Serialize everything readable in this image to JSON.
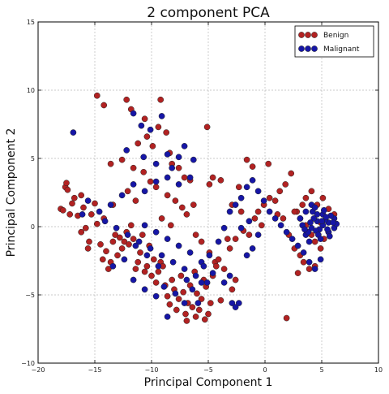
{
  "chart_data": {
    "type": "scatter",
    "title": "2 component PCA",
    "xlabel": "Principal Component 1",
    "ylabel": "Principal Component 2",
    "xlim": [
      -20,
      10
    ],
    "ylim": [
      -10,
      15
    ],
    "xticks": [
      -20,
      -15,
      -10,
      -5,
      0,
      5,
      10
    ],
    "yticks": [
      -10,
      -5,
      0,
      5,
      10,
      15
    ],
    "grid": true,
    "legend_position": "top-right",
    "series": [
      {
        "name": "Benign",
        "color": "#b22222",
        "points": [
          [
            -18,
            1.3
          ],
          [
            -17.8,
            1.2
          ],
          [
            -17.6,
            2.9
          ],
          [
            -17.5,
            3.2
          ],
          [
            -17.4,
            2.7
          ],
          [
            -17.2,
            0.9
          ],
          [
            -17,
            1.7
          ],
          [
            -16.8,
            2.1
          ],
          [
            -16.5,
            0.8
          ],
          [
            -16.2,
            2.3
          ],
          [
            -16,
            1.4
          ],
          [
            -15.8,
            -0.1
          ],
          [
            -15.5,
            -1.1
          ],
          [
            -15.3,
            0.9
          ],
          [
            -15,
            1.7
          ],
          [
            -14.8,
            0.2
          ],
          [
            -14.5,
            -1.3
          ],
          [
            -14.3,
            -2.4
          ],
          [
            -14,
            -1.8
          ],
          [
            -13.8,
            -3.1
          ],
          [
            -13.6,
            -2.6
          ],
          [
            -13.4,
            -1.1
          ],
          [
            -13.2,
            -0.6
          ],
          [
            -13,
            -2.1
          ],
          [
            -12.8,
            -0.8
          ],
          [
            -12.6,
            -1.6
          ],
          [
            -12.4,
            -1.1
          ],
          [
            -12.2,
            -0.4
          ],
          [
            -12,
            -1.3
          ],
          [
            -11.8,
            0.1
          ],
          [
            -11.6,
            -0.9
          ],
          [
            -11.4,
            -3.1
          ],
          [
            -11.2,
            -2.6
          ],
          [
            -11,
            -1.9
          ],
          [
            -10.8,
            -0.6
          ],
          [
            -10.6,
            -3.3
          ],
          [
            -10.4,
            -2.9
          ],
          [
            -10.2,
            -1.4
          ],
          [
            -10,
            -3.6
          ],
          [
            -9.8,
            -2.4
          ],
          [
            -9.6,
            -4.1
          ],
          [
            -9.4,
            -3.3
          ],
          [
            -9.2,
            -2.6
          ],
          [
            -9,
            -2.9
          ],
          [
            -8.8,
            -4.3
          ],
          [
            -8.6,
            -5.1
          ],
          [
            -8.4,
            -5.7
          ],
          [
            -8.2,
            -3.9
          ],
          [
            -8,
            -4.6
          ],
          [
            -7.8,
            -6.1
          ],
          [
            -7.6,
            -5.3
          ],
          [
            -7.4,
            -3.6
          ],
          [
            -7.2,
            -4.8
          ],
          [
            -7,
            -6.4
          ],
          [
            -6.8,
            -5.6
          ],
          [
            -6.6,
            -4.3
          ],
          [
            -6.4,
            -5.9
          ],
          [
            -6.2,
            -3.3
          ],
          [
            -6,
            -4.9
          ],
          [
            -5.8,
            -6.1
          ],
          [
            -5.6,
            -5.3
          ],
          [
            -5.4,
            -3.9
          ],
          [
            -5.2,
            -4.4
          ],
          [
            -5,
            -6.4
          ],
          [
            -4.8,
            -5.6
          ],
          [
            -4.6,
            -3.6
          ],
          [
            -4.4,
            -2.6
          ],
          [
            -14.8,
            9.6
          ],
          [
            -14.2,
            8.9
          ],
          [
            -12.2,
            9.3
          ],
          [
            -11.8,
            8.6
          ],
          [
            -10.6,
            7.9
          ],
          [
            -9.2,
            9.3
          ],
          [
            -9.4,
            7.3
          ],
          [
            -8.7,
            6.9
          ],
          [
            -8.4,
            5.4
          ],
          [
            -9.9,
            5.9
          ],
          [
            -10.4,
            6.6
          ],
          [
            -11.2,
            6.1
          ],
          [
            -12.6,
            4.9
          ],
          [
            -13.6,
            4.6
          ],
          [
            -11.6,
            4.3
          ],
          [
            -10.7,
            4.0
          ],
          [
            -8.2,
            4.6
          ],
          [
            -7.6,
            4.3
          ],
          [
            -7.1,
            3.6
          ],
          [
            -6.6,
            3.4
          ],
          [
            -5.1,
            7.3
          ],
          [
            -4.6,
            3.6
          ],
          [
            -10.1,
            3.3
          ],
          [
            -9.6,
            2.9
          ],
          [
            -8.6,
            2.3
          ],
          [
            -7.9,
            1.9
          ],
          [
            -7.3,
            1.4
          ],
          [
            -6.9,
            0.9
          ],
          [
            -6.3,
            1.6
          ],
          [
            -12.1,
            2.6
          ],
          [
            -11.4,
            1.9
          ],
          [
            -13.4,
            1.6
          ],
          [
            -14.2,
            0.6
          ],
          [
            -9.1,
            0.6
          ],
          [
            -8.3,
            0.1
          ],
          [
            -6.1,
            -0.6
          ],
          [
            -5.6,
            -1.1
          ],
          [
            -4.9,
            -1.9
          ],
          [
            -4.1,
            -2.4
          ],
          [
            -3.6,
            -3.1
          ],
          [
            -3.1,
            -1.6
          ],
          [
            -2.6,
            -0.9
          ],
          [
            -1.9,
            -0.3
          ],
          [
            -1.4,
            -0.6
          ],
          [
            -0.9,
            0.6
          ],
          [
            -0.6,
            1.1
          ],
          [
            -0.1,
            1.6
          ],
          [
            0.4,
            2.1
          ],
          [
            0.9,
            1.9
          ],
          [
            1.3,
            2.6
          ],
          [
            1.8,
            3.1
          ],
          [
            2.3,
            3.9
          ],
          [
            2.8,
            1.1
          ],
          [
            3.1,
            0.6
          ],
          [
            3.6,
            0.1
          ],
          [
            4.1,
            -0.6
          ],
          [
            4.4,
            -1.1
          ],
          [
            4.9,
            -1.6
          ],
          [
            5.2,
            -0.9
          ],
          [
            5.6,
            -0.4
          ],
          [
            -2.9,
            1.6
          ],
          [
            -2.3,
            2.9
          ],
          [
            -1.6,
            4.9
          ],
          [
            -1.1,
            4.4
          ],
          [
            0.3,
            4.6
          ],
          [
            1.6,
            0.6
          ],
          [
            2.1,
            -0.6
          ],
          [
            2.6,
            -1.6
          ],
          [
            3.1,
            -2.1
          ],
          [
            3.4,
            -2.6
          ],
          [
            3.9,
            -3.1
          ],
          [
            4.4,
            -2.9
          ],
          [
            2.9,
            -3.4
          ],
          [
            1.9,
            -6.7
          ],
          [
            3.6,
            2.1
          ],
          [
            4.1,
            2.6
          ],
          [
            4.6,
            1.6
          ],
          [
            5.1,
            2.1
          ],
          [
            5.6,
            1.3
          ],
          [
            6.1,
            0.9
          ],
          [
            4.9,
            0.3
          ],
          [
            3.3,
            1.6
          ],
          [
            2.6,
            1.1
          ],
          [
            1.1,
            0.9
          ],
          [
            -0.3,
            0.1
          ],
          [
            -4.9,
            3.1
          ],
          [
            -3.9,
            3.4
          ],
          [
            -2.1,
            1.1
          ],
          [
            -3.3,
            -0.9
          ],
          [
            -6.9,
            -6.9
          ],
          [
            -6.1,
            -6.6
          ],
          [
            -5.3,
            -6.8
          ],
          [
            -16.2,
            -0.4
          ],
          [
            -15.6,
            -1.6
          ],
          [
            -4.3,
            -2.9
          ],
          [
            -3.9,
            -5.4
          ],
          [
            -2.6,
            -3.9
          ],
          [
            -2.9,
            -4.6
          ]
        ]
      },
      {
        "name": "Malignant",
        "color": "#1616a6",
        "points": [
          [
            -16.9,
            6.9
          ],
          [
            -11.6,
            8.3
          ],
          [
            -10.9,
            7.4
          ],
          [
            -10.1,
            7.1
          ],
          [
            -9.1,
            8.1
          ],
          [
            -12.2,
            5.6
          ],
          [
            -10.7,
            5.1
          ],
          [
            -9.6,
            4.6
          ],
          [
            -8.6,
            5.3
          ],
          [
            -8.2,
            4.3
          ],
          [
            -7.6,
            5.1
          ],
          [
            -7.1,
            5.9
          ],
          [
            -6.3,
            4.9
          ],
          [
            -6.6,
            3.6
          ],
          [
            -7.6,
            3.1
          ],
          [
            -8.6,
            3.6
          ],
          [
            -9.6,
            3.3
          ],
          [
            -10.6,
            2.6
          ],
          [
            -11.6,
            3.1
          ],
          [
            -12.6,
            2.3
          ],
          [
            -13.6,
            1.6
          ],
          [
            -14.6,
            1.1
          ],
          [
            -15.6,
            1.9
          ],
          [
            -16.1,
            0.9
          ],
          [
            -14.1,
            0.4
          ],
          [
            -13.1,
            -0.1
          ],
          [
            -12.1,
            -0.6
          ],
          [
            -11.1,
            -1.1
          ],
          [
            -10.1,
            -1.6
          ],
          [
            -9.1,
            -2.1
          ],
          [
            -8.1,
            -2.6
          ],
          [
            -7.1,
            -3.1
          ],
          [
            -6.1,
            -3.6
          ],
          [
            -5.1,
            -4.1
          ],
          [
            -4.6,
            -3.4
          ],
          [
            -5.6,
            -2.6
          ],
          [
            -6.6,
            -1.9
          ],
          [
            -7.6,
            -1.4
          ],
          [
            -8.6,
            -0.9
          ],
          [
            -9.6,
            -0.4
          ],
          [
            -10.6,
            0.1
          ],
          [
            -11.6,
            -3.9
          ],
          [
            -10.6,
            -4.6
          ],
          [
            -9.6,
            -5.1
          ],
          [
            -8.6,
            -6.6
          ],
          [
            -7.1,
            -5.6
          ],
          [
            -6.4,
            -4.6
          ],
          [
            -5.9,
            -5.6
          ],
          [
            -5.6,
            -4.1
          ],
          [
            -4.9,
            -2.1
          ],
          [
            -4.1,
            -1.1
          ],
          [
            -3.6,
            -0.1
          ],
          [
            -3.1,
            1.1
          ],
          [
            -2.6,
            1.6
          ],
          [
            -2.1,
            2.1
          ],
          [
            -1.6,
            2.9
          ],
          [
            -1.1,
            3.4
          ],
          [
            -0.6,
            2.6
          ],
          [
            -0.1,
            1.9
          ],
          [
            0.4,
            1.1
          ],
          [
            0.9,
            0.6
          ],
          [
            1.4,
            0.1
          ],
          [
            1.9,
            -0.4
          ],
          [
            2.4,
            -0.9
          ],
          [
            2.9,
            -1.4
          ],
          [
            3.4,
            -1.9
          ],
          [
            3.9,
            -2.6
          ],
          [
            4.4,
            -3.1
          ],
          [
            4.9,
            -2.4
          ],
          [
            3.6,
            -0.6
          ],
          [
            4.1,
            -0.1
          ],
          [
            4.6,
            0.4
          ],
          [
            5.1,
            0.9
          ],
          [
            5.6,
            0.3
          ],
          [
            6.1,
            -0.1
          ],
          [
            3.1,
            0.6
          ],
          [
            3.6,
            1.1
          ],
          [
            4.1,
            1.6
          ],
          [
            4.6,
            0.9
          ],
          [
            5.1,
            0.1
          ],
          [
            5.6,
            -0.4
          ],
          [
            6.1,
            0.6
          ],
          [
            3.3,
            0.1
          ],
          [
            3.8,
            -0.4
          ],
          [
            4.3,
            0.6
          ],
          [
            4.8,
            -0.2
          ],
          [
            5.3,
            0.5
          ],
          [
            5.8,
            0.8
          ],
          [
            6.3,
            0.2
          ],
          [
            4.0,
            0.3
          ],
          [
            4.5,
            -0.3
          ],
          [
            5.0,
            0.4
          ],
          [
            5.5,
            -0.2
          ],
          [
            6.0,
            0.3
          ],
          [
            3.5,
            -0.2
          ],
          [
            4.2,
            1.1
          ],
          [
            4.7,
            -0.6
          ],
          [
            5.2,
            1.2
          ],
          [
            5.7,
            -0.7
          ],
          [
            3.9,
            -1.1
          ],
          [
            4.4,
            1.4
          ],
          [
            4.9,
            -0.9
          ],
          [
            5.4,
            0.7
          ],
          [
            -2.9,
            -5.6
          ],
          [
            -2.6,
            -5.9
          ],
          [
            -2.3,
            -5.6
          ],
          [
            -3.6,
            -4.1
          ],
          [
            -3.1,
            -3.6
          ],
          [
            -1.6,
            -2.1
          ],
          [
            -1.1,
            -1.6
          ],
          [
            -0.6,
            -0.6
          ],
          [
            -2.1,
            -0.1
          ],
          [
            -1.4,
            0.4
          ],
          [
            -5.4,
            -2.9
          ],
          [
            -6.9,
            -3.9
          ],
          [
            -7.9,
            -4.9
          ],
          [
            -8.9,
            -4.4
          ],
          [
            -9.4,
            -2.9
          ],
          [
            -10.4,
            -2.1
          ],
          [
            -11.4,
            -1.4
          ],
          [
            -12.4,
            -2.4
          ],
          [
            -13.4,
            -2.9
          ]
        ]
      }
    ]
  }
}
